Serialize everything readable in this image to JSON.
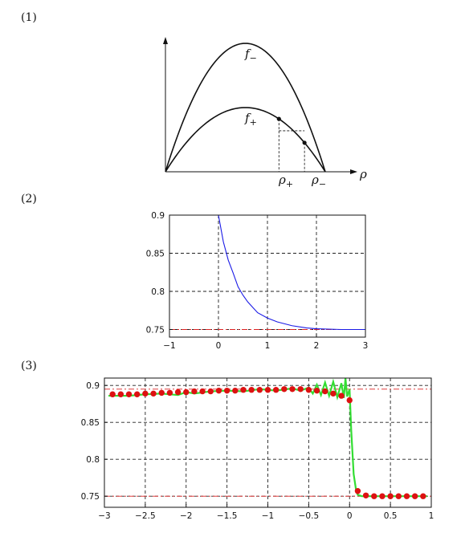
{
  "panels": [
    {
      "label": "(1)"
    },
    {
      "label": "(2)"
    },
    {
      "label": "(3)"
    }
  ],
  "chart_data": [
    {
      "type": "line",
      "annotations": {
        "f_minus": "f",
        "f_minus_sub": "−",
        "f_plus": "f",
        "f_plus_sub": "+",
        "rho_axis": "ρ",
        "rho_plus": "ρ",
        "rho_plus_sub": "+",
        "rho_minus": "ρ",
        "rho_minus_sub": "−"
      },
      "series": [
        {
          "name": "",
          "shape": "parabola",
          "peak": 1.0
        },
        {
          "name": "",
          "shape": "parabola",
          "peak": 0.5
        }
      ],
      "markers": [
        {
          "curve": 1,
          "x_fraction": 0.71
        },
        {
          "curve": 1,
          "x_fraction": 0.87
        }
      ]
    },
    {
      "type": "line",
      "xlim": [
        -1,
        3
      ],
      "ylim": [
        0.74,
        0.9
      ],
      "xticks": [
        "−1",
        "0",
        "1",
        "2",
        "3"
      ],
      "yticks": [
        "0.75",
        "0.8",
        "0.85",
        "0.9"
      ],
      "ytick_values": [
        0.75,
        0.8,
        0.85,
        0.9
      ],
      "xtick_values": [
        -1,
        0,
        1,
        2,
        3
      ],
      "grid": true,
      "reference_lines": [
        0.9,
        0.75
      ],
      "series": [
        {
          "name": "",
          "color": "#1a1ae6",
          "x": [
            -1,
            0,
            0.1,
            0.2,
            0.3,
            0.4,
            0.5,
            0.6,
            0.8,
            1.0,
            1.2,
            1.5,
            1.8,
            2.0,
            2.5,
            3.0
          ],
          "y": [
            0.9,
            0.9,
            0.865,
            0.841,
            0.824,
            0.806,
            0.795,
            0.786,
            0.772,
            0.765,
            0.76,
            0.755,
            0.752,
            0.751,
            0.75,
            0.75
          ]
        }
      ]
    },
    {
      "type": "line",
      "xlim": [
        -3,
        1
      ],
      "ylim": [
        0.735,
        0.91
      ],
      "xticks": [
        "−3",
        "−2.5",
        "−2",
        "−1.5",
        "−1",
        "−0.5",
        "0",
        "0.5",
        "1"
      ],
      "xtick_values": [
        -3,
        -2.5,
        -2,
        -1.5,
        -1,
        -0.5,
        0,
        0.5,
        1
      ],
      "yticks": [
        "0.75",
        "0.8",
        "0.85",
        "0.9"
      ],
      "ytick_values": [
        0.75,
        0.8,
        0.85,
        0.9
      ],
      "grid": true,
      "reference_lines": [
        0.895,
        0.75
      ],
      "series": [
        {
          "name": "",
          "color": "#33dd33",
          "x": [
            -2.95,
            -2.7,
            -2.5,
            -2.3,
            -2.1,
            -2.0,
            -1.9,
            -1.7,
            -1.5,
            -1.3,
            -1.1,
            -0.9,
            -0.7,
            -0.6,
            -0.5,
            -0.45,
            -0.4,
            -0.35,
            -0.3,
            -0.25,
            -0.2,
            -0.15,
            -0.1,
            -0.07,
            -0.05,
            -0.03,
            0.0,
            0.02,
            0.05,
            0.08,
            0.1,
            0.15,
            0.3,
            0.5,
            0.7,
            0.95
          ],
          "y": [
            0.886,
            0.886,
            0.888,
            0.889,
            0.887,
            0.891,
            0.889,
            0.892,
            0.893,
            0.892,
            0.895,
            0.893,
            0.896,
            0.893,
            0.897,
            0.889,
            0.901,
            0.887,
            0.904,
            0.886,
            0.905,
            0.884,
            0.903,
            0.883,
            0.91,
            0.885,
            0.895,
            0.84,
            0.78,
            0.758,
            0.752,
            0.75,
            0.75,
            0.75,
            0.75,
            0.75
          ]
        },
        {
          "name": "",
          "color": "#dd1111",
          "x": [
            -2.9,
            -2.8,
            -2.7,
            -2.6,
            -2.5,
            -2.4,
            -2.3,
            -2.2,
            -2.1,
            -2.0,
            -1.9,
            -1.8,
            -1.7,
            -1.6,
            -1.5,
            -1.4,
            -1.3,
            -1.2,
            -1.1,
            -1.0,
            -0.9,
            -0.8,
            -0.7,
            -0.6,
            -0.5,
            -0.4,
            -0.3,
            -0.2,
            -0.1,
            0.0,
            0.1,
            0.2,
            0.3,
            0.4,
            0.5,
            0.6,
            0.7,
            0.8,
            0.9
          ],
          "y": [
            0.888,
            0.888,
            0.888,
            0.888,
            0.889,
            0.889,
            0.89,
            0.89,
            0.891,
            0.891,
            0.892,
            0.892,
            0.892,
            0.893,
            0.893,
            0.893,
            0.894,
            0.894,
            0.894,
            0.894,
            0.894,
            0.895,
            0.895,
            0.895,
            0.894,
            0.893,
            0.892,
            0.889,
            0.886,
            0.88,
            0.757,
            0.751,
            0.75,
            0.75,
            0.75,
            0.75,
            0.75,
            0.75,
            0.75
          ]
        }
      ]
    }
  ]
}
